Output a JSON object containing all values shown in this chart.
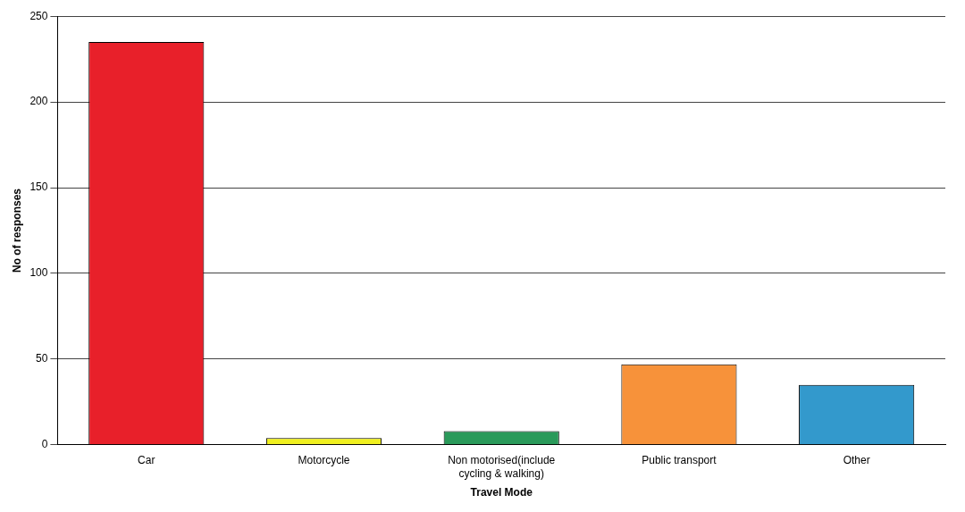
{
  "chart_data": {
    "type": "bar",
    "xlabel": "Travel Mode",
    "ylabel": "No of responses",
    "categories": [
      "Car",
      "Motorcycle",
      "Non motorised(include cycling & walking)",
      "Public transport",
      "Other"
    ],
    "values": [
      235,
      4,
      8,
      47,
      35
    ],
    "colors": [
      "#e8202a",
      "#f0f020",
      "#2a9a5a",
      "#f7923a",
      "#3399cc"
    ],
    "ylim": [
      0,
      250
    ],
    "yticks": [
      0,
      50,
      100,
      150,
      200,
      250
    ],
    "grid": "y",
    "legend": false
  }
}
